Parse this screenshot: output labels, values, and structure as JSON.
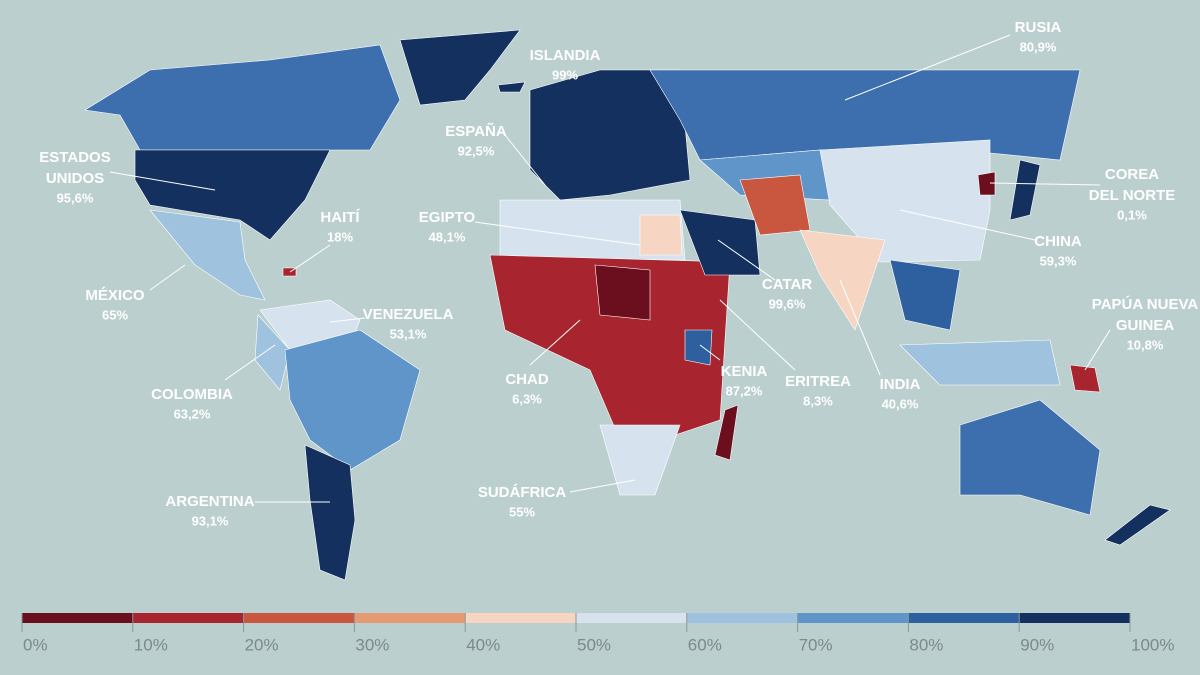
{
  "map": {
    "labels": [
      {
        "name": [
          "RUSIA"
        ],
        "value": "80,9%"
      },
      {
        "name": [
          "ISLANDIA"
        ],
        "value": "99%"
      },
      {
        "name": [
          "ESPAÑA"
        ],
        "value": "92,5%"
      },
      {
        "name": [
          "ESTADOS",
          "UNIDOS"
        ],
        "value": "95,6%"
      },
      {
        "name": [
          "HAITÍ"
        ],
        "value": "18%"
      },
      {
        "name": [
          "EGIPTO"
        ],
        "value": "48,1%"
      },
      {
        "name": [
          "COREA",
          "DEL NORTE"
        ],
        "value": "0,1%"
      },
      {
        "name": [
          "CHINA"
        ],
        "value": "59,3%"
      },
      {
        "name": [
          "MÉXICO"
        ],
        "value": "65%"
      },
      {
        "name": [
          "VENEZUELA"
        ],
        "value": "53,1%"
      },
      {
        "name": [
          "CATAR"
        ],
        "value": "99,6%"
      },
      {
        "name": [
          "PAPÚA NUEVA",
          "GUINEA"
        ],
        "value": "10,8%"
      },
      {
        "name": [
          "CHAD"
        ],
        "value": "6,3%"
      },
      {
        "name": [
          "KENIA"
        ],
        "value": "87,2%"
      },
      {
        "name": [
          "ERITREA"
        ],
        "value": "8,3%"
      },
      {
        "name": [
          "INDIA"
        ],
        "value": "40,6%"
      },
      {
        "name": [
          "COLOMBIA"
        ],
        "value": "63,2%"
      },
      {
        "name": [
          "SUDÁFRICA"
        ],
        "value": "55%"
      },
      {
        "name": [
          "ARGENTINA"
        ],
        "value": "93,1%"
      }
    ],
    "legend": {
      "colors": [
        "#6b0f1e",
        "#a8242e",
        "#c9573f",
        "#e59a73",
        "#f6d5c3",
        "#d6e3ef",
        "#9fc2df",
        "#5f95c8",
        "#2e5f9f",
        "#13305e"
      ],
      "ticks": [
        "0%",
        "10%",
        "20%",
        "30%",
        "40%",
        "50%",
        "60%",
        "70%",
        "80%",
        "90%",
        "100%"
      ]
    }
  }
}
